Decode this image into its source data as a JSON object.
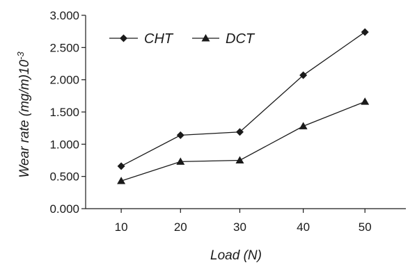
{
  "chart_data": {
    "type": "line",
    "x": [
      10,
      20,
      30,
      40,
      50
    ],
    "x_positions": [
      10,
      20,
      30,
      40.7,
      51.1
    ],
    "xtick_labels": [
      "10",
      "20",
      "30",
      "40",
      "50"
    ],
    "xlim": [
      4,
      58
    ],
    "ylim": [
      0,
      3.0
    ],
    "ytick_values": [
      0,
      0.5,
      1.0,
      1.5,
      2.0,
      2.5,
      3.0
    ],
    "ytick_labels": [
      "0.000",
      "0.500",
      "1.000",
      "1.500",
      "2.000",
      "2.500",
      "3.000"
    ],
    "xlabel_main": "Load",
    "xlabel_unit": "(N)",
    "ylabel_main": "Wear rate",
    "ylabel_unit": "(mg/m)10",
    "ylabel_exp": "-3",
    "legend_placement": "top-left",
    "grid": false,
    "series": [
      {
        "name": "CHT",
        "marker": "diamond",
        "values": [
          0.66,
          1.14,
          1.19,
          2.07,
          2.74
        ]
      },
      {
        "name": "DCT",
        "marker": "triangle",
        "values": [
          0.43,
          0.73,
          0.75,
          1.28,
          1.66
        ]
      }
    ],
    "colors": {
      "line": "#1a1a1a",
      "axis": "#1a1a1a"
    }
  }
}
